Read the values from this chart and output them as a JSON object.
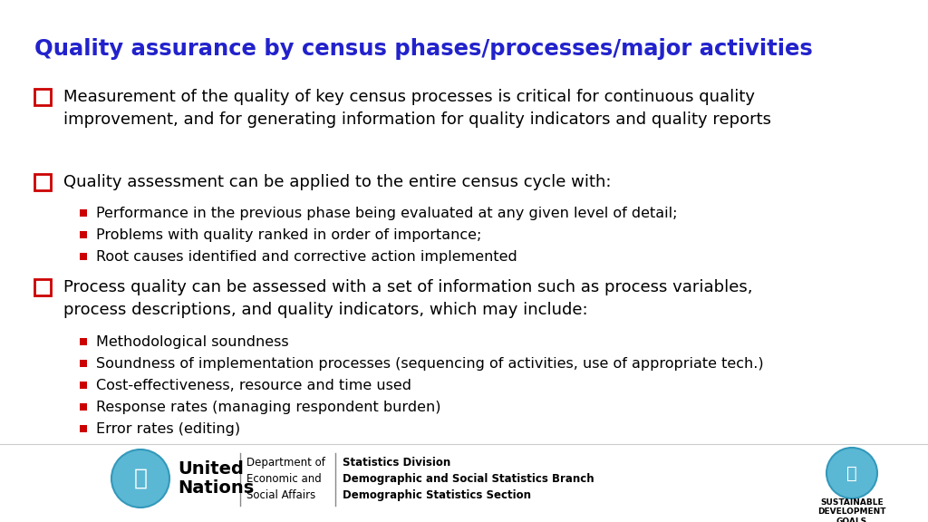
{
  "title": "Quality assurance by census phases/processes/major activities",
  "title_color": "#2222CC",
  "title_fontsize": 17.5,
  "background_color": "#FFFFFF",
  "bullet1_text": "Measurement of the quality of key census processes is critical for continuous quality\nimprovement, and for generating information for quality indicators and quality reports",
  "bullet2_text": "Quality assessment can be applied to the entire census cycle with:",
  "sub_bullets_2": [
    "Performance in the previous phase being evaluated at any given level of detail;",
    "Problems with quality ranked in order of importance;",
    "Root causes identified and corrective action implemented"
  ],
  "bullet3_text": "Process quality can be assessed with a set of information such as process variables,\nprocess descriptions, and quality indicators, which may include:",
  "sub_bullets_3": [
    "Methodological soundness",
    "Soundness of implementation processes (sequencing of activities, use of appropriate tech.)",
    "Cost-effectiveness, resource and time used",
    "Response rates (managing respondent burden)",
    "Error rates (editing)"
  ],
  "checkbox_color": "#CC0000",
  "sub_bullet_color": "#CC0000",
  "main_text_color": "#000000",
  "main_fontsize": 13.0,
  "sub_fontsize": 11.5,
  "footer_dept": "Department of\nEconomic and\nSocial Affairs",
  "footer_stats": "Statistics Division\nDemographic and Social Statistics Branch\nDemographic Statistics Section",
  "footer_un_bold": "United\nNations"
}
